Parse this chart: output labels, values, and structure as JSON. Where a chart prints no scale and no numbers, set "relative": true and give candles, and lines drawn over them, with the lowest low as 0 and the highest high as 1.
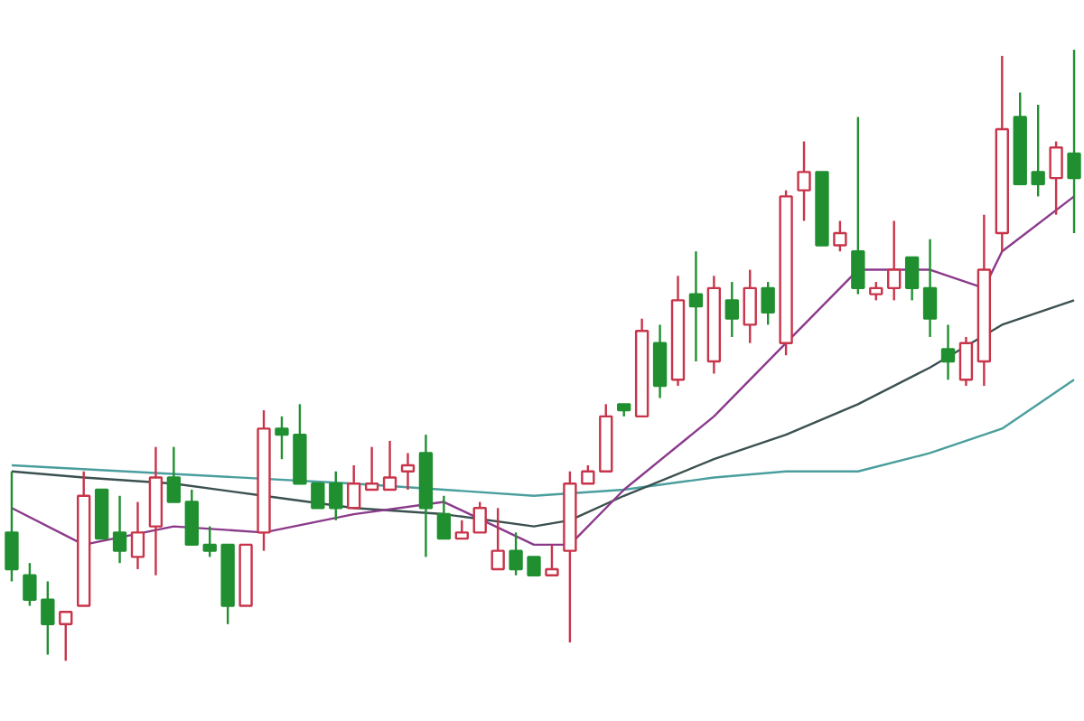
{
  "chart_data": {
    "type": "candlestick",
    "relative": true,
    "grid": false,
    "categories": [
      null,
      null,
      null,
      null,
      null,
      null,
      null,
      null,
      null,
      null,
      null,
      null,
      null,
      null,
      null,
      null,
      null,
      null,
      null,
      null,
      null,
      null,
      null,
      null,
      null,
      null,
      null,
      null,
      null,
      null,
      null,
      null,
      null,
      null,
      null,
      null,
      null,
      null,
      null,
      null,
      null,
      null,
      null,
      null,
      null,
      null,
      null,
      null,
      null,
      null,
      null,
      null,
      null,
      null,
      null,
      null,
      null,
      null,
      null,
      null
    ],
    "ohlc": [
      [
        0.21,
        0.31,
        0.13,
        0.15
      ],
      [
        0.14,
        0.16,
        0.09,
        0.1
      ],
      [
        0.1,
        0.13,
        0.01,
        0.06
      ],
      [
        0.06,
        0.08,
        0,
        0.08
      ],
      [
        0.09,
        0.31,
        0.09,
        0.27
      ],
      [
        0.28,
        0.28,
        0.2,
        0.2
      ],
      [
        0.21,
        0.27,
        0.16,
        0.18
      ],
      [
        0.17,
        0.26,
        0.15,
        0.21
      ],
      [
        0.22,
        0.35,
        0.14,
        0.3
      ],
      [
        0.3,
        0.35,
        0.26,
        0.26
      ],
      [
        0.26,
        0.28,
        0.19,
        0.19
      ],
      [
        0.19,
        0.22,
        0.17,
        0.18
      ],
      [
        0.19,
        0.19,
        0.06,
        0.09
      ],
      [
        0.09,
        0.19,
        0.09,
        0.19
      ],
      [
        0.21,
        0.41,
        0.18,
        0.38
      ],
      [
        0.38,
        0.4,
        0.33,
        0.37
      ],
      [
        0.37,
        0.42,
        0.29,
        0.29
      ],
      [
        0.29,
        0.29,
        0.25,
        0.25
      ],
      [
        0.29,
        0.31,
        0.23,
        0.25
      ],
      [
        0.25,
        0.32,
        0.25,
        0.29
      ],
      [
        0.28,
        0.35,
        0.28,
        0.29
      ],
      [
        0.28,
        0.36,
        0.28,
        0.3
      ],
      [
        0.31,
        0.34,
        0.28,
        0.32
      ],
      [
        0.34,
        0.37,
        0.17,
        0.25
      ],
      [
        0.24,
        0.27,
        0.2,
        0.2
      ],
      [
        0.2,
        0.23,
        0.2,
        0.21
      ],
      [
        0.21,
        0.26,
        0.21,
        0.25
      ],
      [
        0.15,
        0.25,
        0.15,
        0.18
      ],
      [
        0.18,
        0.21,
        0.14,
        0.15
      ],
      [
        0.17,
        0.17,
        0.14,
        0.14
      ],
      [
        0.14,
        0.19,
        0.14,
        0.15
      ],
      [
        0.18,
        0.31,
        0.03,
        0.29
      ],
      [
        0.29,
        0.32,
        0.29,
        0.31
      ],
      [
        0.31,
        0.42,
        0.31,
        0.4
      ],
      [
        0.42,
        0.42,
        0.4,
        0.41
      ],
      [
        0.4,
        0.56,
        0.4,
        0.54
      ],
      [
        0.52,
        0.55,
        0.43,
        0.45
      ],
      [
        0.46,
        0.63,
        0.45,
        0.59
      ],
      [
        0.6,
        0.67,
        0.49,
        0.58
      ],
      [
        0.49,
        0.63,
        0.47,
        0.61
      ],
      [
        0.59,
        0.62,
        0.53,
        0.56
      ],
      [
        0.55,
        0.64,
        0.52,
        0.61
      ],
      [
        0.61,
        0.62,
        0.55,
        0.57
      ],
      [
        0.52,
        0.77,
        0.5,
        0.76
      ],
      [
        0.77,
        0.85,
        0.72,
        0.8
      ],
      [
        0.8,
        0.8,
        0.68,
        0.68
      ],
      [
        0.68,
        0.72,
        0.67,
        0.7
      ],
      [
        0.67,
        0.89,
        0.6,
        0.61
      ],
      [
        0.6,
        0.62,
        0.59,
        0.61
      ],
      [
        0.61,
        0.72,
        0.59,
        0.64
      ],
      [
        0.66,
        0.66,
        0.59,
        0.61
      ],
      [
        0.61,
        0.69,
        0.53,
        0.56
      ],
      [
        0.51,
        0.55,
        0.46,
        0.49
      ],
      [
        0.46,
        0.53,
        0.45,
        0.52
      ],
      [
        0.49,
        0.73,
        0.45,
        0.64
      ],
      [
        0.7,
        0.99,
        0.67,
        0.87
      ],
      [
        0.89,
        0.93,
        0.78,
        0.78
      ],
      [
        0.8,
        0.91,
        0.76,
        0.78
      ],
      [
        0.79,
        0.85,
        0.73,
        0.84
      ],
      [
        0.83,
        1,
        0.7,
        0.79
      ]
    ],
    "colors": [
      "#1f8f2f",
      "#1f8f2f",
      "#1f8f2f",
      "#c8344a",
      "#c8344a",
      "#1f8f2f",
      "#1f8f2f",
      "#c8344a",
      "#c8344a",
      "#1f8f2f",
      "#1f8f2f",
      "#1f8f2f",
      "#1f8f2f",
      "#c8344a",
      "#c8344a",
      "#1f8f2f",
      "#1f8f2f",
      "#1f8f2f",
      "#1f8f2f",
      "#c8344a",
      "#c8344a",
      "#c8344a",
      "#c8344a",
      "#1f8f2f",
      "#1f8f2f",
      "#c8344a",
      "#c8344a",
      "#c8344a",
      "#1f8f2f",
      "#1f8f2f",
      "#c8344a",
      "#c8344a",
      "#c8344a",
      "#c8344a",
      "#1f8f2f",
      "#c8344a",
      "#1f8f2f",
      "#c8344a",
      "#1f8f2f",
      "#c8344a",
      "#1f8f2f",
      "#c8344a",
      "#1f8f2f",
      "#c8344a",
      "#c8344a",
      "#1f8f2f",
      "#c8344a",
      "#1f8f2f",
      "#c8344a",
      "#c8344a",
      "#1f8f2f",
      "#1f8f2f",
      "#1f8f2f",
      "#c8344a",
      "#c8344a",
      "#c8344a",
      "#1f8f2f",
      "#1f8f2f",
      "#c8344a",
      "#1f8f2f"
    ],
    "series": [
      {
        "type": "line",
        "color": "#4a9e9e",
        "values": [
          0.32,
          null,
          null,
          null,
          null,
          null,
          null,
          null,
          null,
          null,
          null,
          null,
          null,
          null,
          null,
          null,
          null,
          null,
          null,
          0.29,
          null,
          null,
          null,
          null,
          0.28,
          null,
          null,
          null,
          null,
          0.27,
          null,
          null,
          null,
          null,
          0.28,
          null,
          null,
          null,
          null,
          0.3,
          null,
          null,
          null,
          0.31,
          null,
          null,
          null,
          0.31,
          null,
          null,
          null,
          0.34,
          null,
          null,
          0.37,
          0.38,
          null,
          null,
          null,
          0.46
        ]
      },
      {
        "type": "line",
        "color": "#3b5050",
        "values": [
          0.31,
          null,
          null,
          null,
          0.3,
          null,
          null,
          null,
          null,
          0.29,
          null,
          null,
          null,
          null,
          0.27,
          null,
          null,
          null,
          null,
          0.25,
          null,
          null,
          null,
          null,
          0.24,
          null,
          null,
          null,
          null,
          0.22,
          null,
          0.23,
          null,
          null,
          0.27,
          null,
          null,
          null,
          null,
          0.33,
          null,
          null,
          null,
          0.37,
          null,
          null,
          null,
          0.42,
          null,
          null,
          null,
          0.48,
          null,
          null,
          null,
          0.55,
          null,
          null,
          null,
          0.59
        ]
      },
      {
        "type": "line",
        "color": "#8b3a8b",
        "values": [
          0.25,
          null,
          null,
          null,
          0.19,
          null,
          null,
          null,
          null,
          0.22,
          null,
          null,
          null,
          null,
          0.21,
          null,
          null,
          null,
          null,
          0.24,
          null,
          null,
          null,
          null,
          0.26,
          null,
          null,
          null,
          null,
          0.19,
          null,
          0.19,
          null,
          null,
          0.28,
          null,
          null,
          null,
          null,
          0.4,
          null,
          null,
          null,
          0.52,
          null,
          null,
          null,
          0.64,
          null,
          null,
          null,
          0.64,
          null,
          null,
          0.61,
          0.67,
          null,
          null,
          null,
          0.76
        ]
      }
    ]
  }
}
